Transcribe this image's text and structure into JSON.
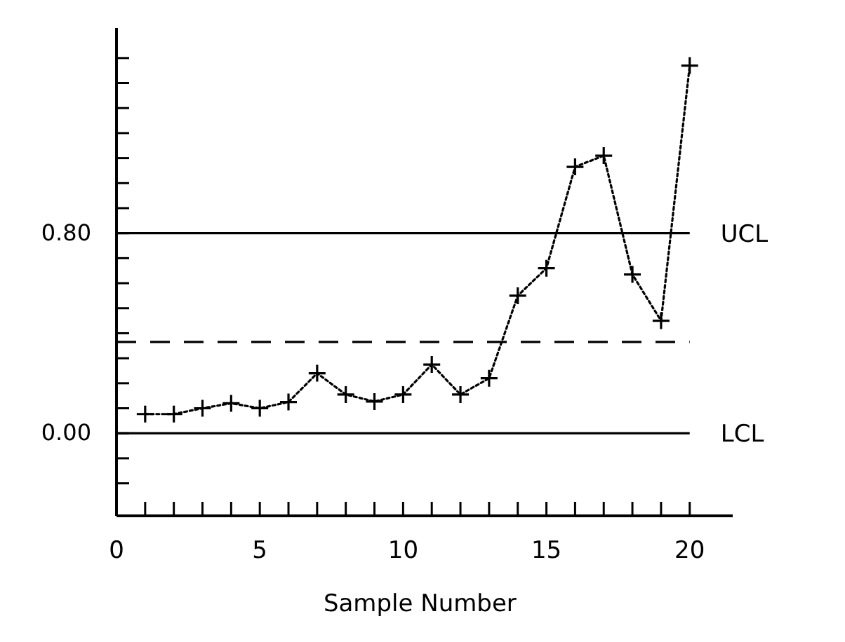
{
  "chart_data": {
    "type": "line",
    "xlabel": "Sample Number",
    "x": [
      1,
      2,
      3,
      4,
      5,
      6,
      7,
      8,
      9,
      10,
      11,
      12,
      13,
      14,
      15,
      16,
      17,
      18,
      19,
      20
    ],
    "series": [
      {
        "color": "#000000",
        "values": [
          0.077,
          0.077,
          0.1,
          0.12,
          0.1,
          0.125,
          0.24,
          0.155,
          0.127,
          0.155,
          0.275,
          0.155,
          0.22,
          0.55,
          0.66,
          1.065,
          1.11,
          0.635,
          0.45,
          1.47
        ]
      }
    ],
    "marker": "cross",
    "line_style": "dotted",
    "xlim": [
      0,
      21.5
    ],
    "xticks": [
      0,
      {
        "value": 1,
        "label": null
      },
      {
        "value": 2,
        "label": null
      },
      {
        "value": 3,
        "label": null
      },
      {
        "value": 4,
        "label": null
      },
      5,
      {
        "value": 6,
        "label": null
      },
      {
        "value": 7,
        "label": null
      },
      {
        "value": 8,
        "label": null
      },
      {
        "value": 9,
        "label": null
      },
      10,
      {
        "value": 11,
        "label": null
      },
      {
        "value": 12,
        "label": null
      },
      {
        "value": 13,
        "label": null
      },
      {
        "value": 14,
        "label": null
      },
      15,
      {
        "value": 16,
        "label": null
      },
      {
        "value": 17,
        "label": null
      },
      {
        "value": 18,
        "label": null
      },
      {
        "value": 19,
        "label": null
      },
      20
    ],
    "ylim": [
      -0.33,
      1.62
    ],
    "yticks": [
      {
        "value": -0.2,
        "label": null
      },
      {
        "value": -0.1,
        "label": null
      },
      {
        "value": 0,
        "label": "0.00"
      },
      {
        "value": 0.1,
        "label": null
      },
      {
        "value": 0.2,
        "label": null
      },
      {
        "value": 0.3,
        "label": null
      },
      {
        "value": 0.4,
        "label": null
      },
      {
        "value": 0.5,
        "label": null
      },
      {
        "value": 0.6,
        "label": null
      },
      {
        "value": 0.7,
        "label": null
      },
      {
        "value": 0.8,
        "label": "0.80"
      },
      {
        "value": 0.9,
        "label": null
      },
      {
        "value": 1.0,
        "label": null
      },
      {
        "value": 1.1,
        "label": null
      },
      {
        "value": 1.2,
        "label": null
      },
      {
        "value": 1.3,
        "label": null
      },
      {
        "value": 1.4,
        "label": null
      },
      {
        "value": 1.5,
        "label": null
      }
    ],
    "ref_lines": [
      {
        "axis": "y",
        "value": 0.8,
        "label": "UCL",
        "line_style": "solid"
      },
      {
        "axis": "y",
        "value": 0.365,
        "label": null,
        "line_style": "dashed"
      },
      {
        "axis": "y",
        "value": 0,
        "label": "LCL",
        "line_style": "solid"
      }
    ],
    "grid": false
  }
}
